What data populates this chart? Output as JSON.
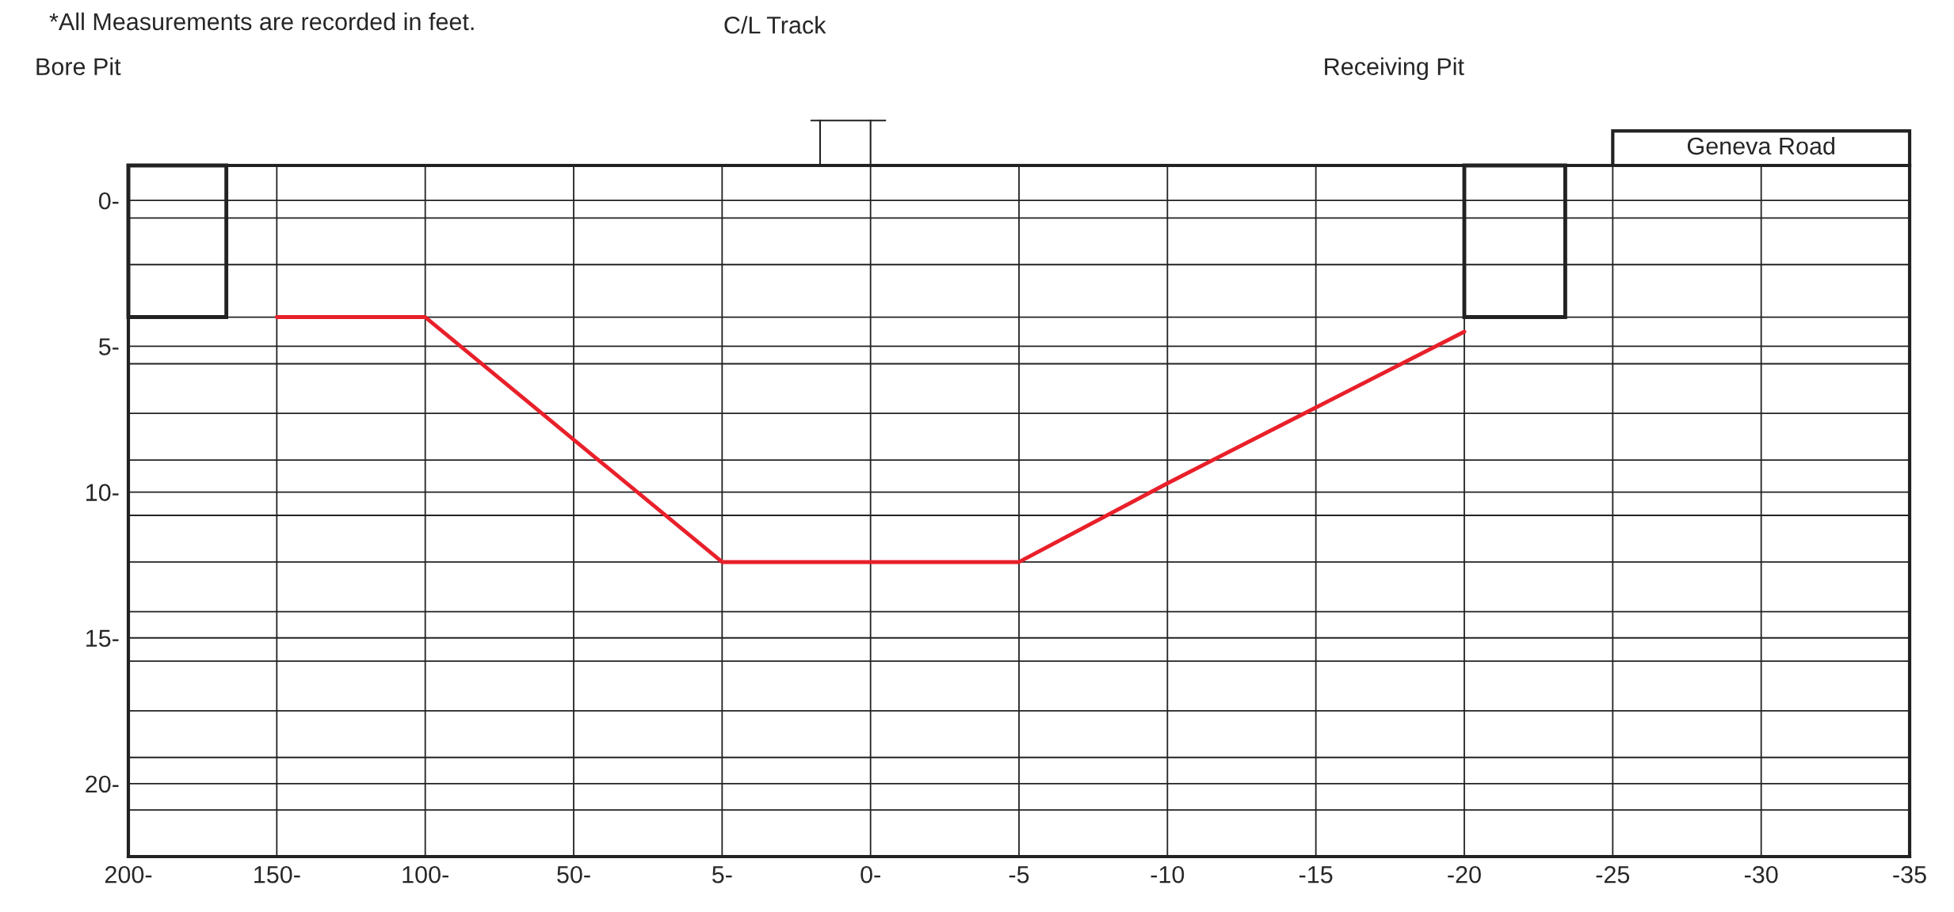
{
  "chart_data": {
    "type": "line",
    "categories": [
      "200-",
      "150-",
      "100-",
      "50-",
      "5-",
      "0-",
      "-5",
      "-10",
      "-15",
      "-20",
      "-25",
      "-30",
      "-35"
    ],
    "series": [
      {
        "color": "#e8202a",
        "values": [
          null,
          4.0,
          4.0,
          8.2,
          12.4,
          12.4,
          12.4,
          9.7,
          7.1,
          4.5,
          null,
          null,
          null
        ]
      }
    ],
    "ylim": [
      22.5,
      -1.2
    ],
    "yticks": [
      {
        "value": 0,
        "label": "0-"
      },
      {
        "value": 0.6,
        "label": null
      },
      {
        "value": 2.2,
        "label": null
      },
      {
        "value": 4.0,
        "label": null
      },
      {
        "value": 5,
        "label": "5-"
      },
      {
        "value": 5.6,
        "label": null
      },
      {
        "value": 7.3,
        "label": null
      },
      {
        "value": 8.9,
        "label": null
      },
      {
        "value": 10,
        "label": "10-"
      },
      {
        "value": 10.8,
        "label": null
      },
      {
        "value": 12.4,
        "label": null
      },
      {
        "value": 14.1,
        "label": null
      },
      {
        "value": 15,
        "label": "15-"
      },
      {
        "value": 15.8,
        "label": null
      },
      {
        "value": 17.5,
        "label": null
      },
      {
        "value": 19.1,
        "label": null
      },
      {
        "value": 20,
        "label": "20-"
      },
      {
        "value": 20.9,
        "label": null
      }
    ],
    "grid": true,
    "marker": "none",
    "line_style": "solid",
    "legend": false,
    "annotations": [
      "*All Measurements are recorded in feet.",
      "Bore Pit",
      "C/L Track",
      "Receiving Pit",
      "Geneva Road"
    ]
  }
}
